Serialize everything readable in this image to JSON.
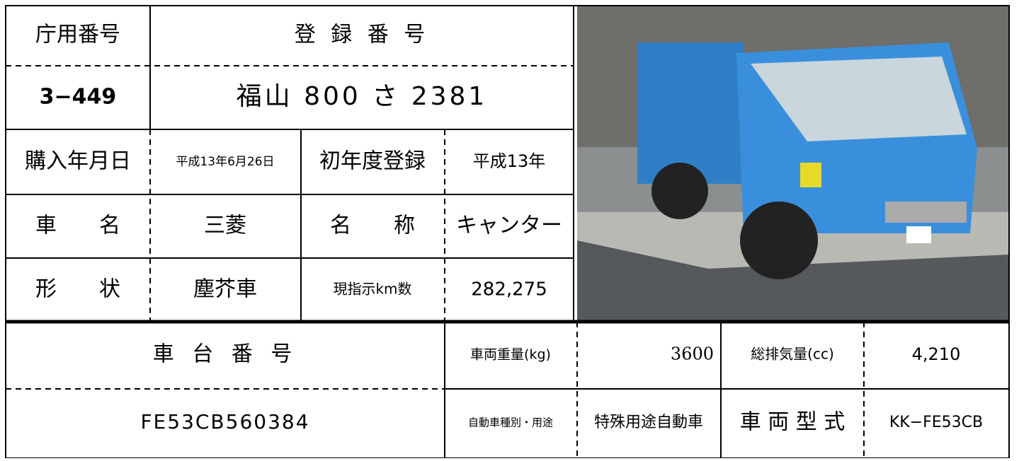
{
  "vehicle": {
    "office_number_label": "庁用番号",
    "office_number": "3−449",
    "registration_label": "登 録 番 号",
    "registration": "福山 800 さ 2381",
    "purchase_date_label": "購入年月日",
    "purchase_date": "平成13年6月26日",
    "first_registration_label": "初年度登録",
    "first_registration": "平成13年",
    "maker_label": "車　　名",
    "maker": "三菱",
    "model_name_label": "名　　称",
    "model_name": "キャンター",
    "shape_label": "形　　状",
    "shape": "塵芥車",
    "odometer_label": "現指示km数",
    "odometer": "282,275",
    "chassis_label": "車 台 番 号",
    "chassis": "FE53CB560384",
    "weight_label": "車両重量(kg)",
    "weight": "3600",
    "displacement_label": "総排気量(cc)",
    "displacement": "4,210",
    "type_label": "自動車種別・用途",
    "type": "特殊用途自動車",
    "model_code_label": "車 両 型 式",
    "model_code": "KK−FE53CB"
  }
}
